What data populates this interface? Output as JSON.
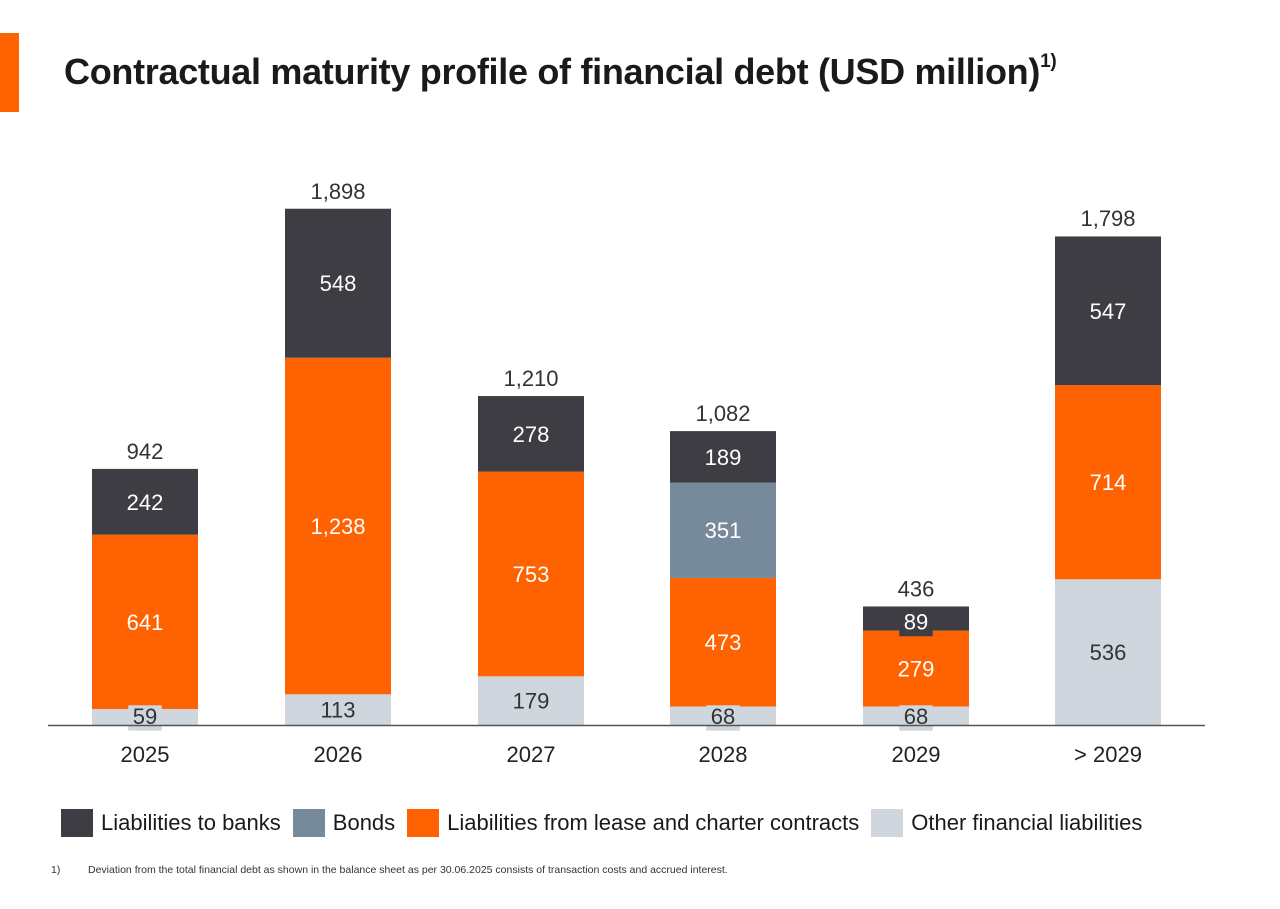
{
  "title": "Contractual maturity profile of financial debt (USD million)",
  "title_footnote_mark": "1)",
  "footnote": {
    "mark": "1)",
    "text": "Deviation from the total financial debt as shown in the balance sheet as per 30.06.2025 consists of transaction costs and accrued interest."
  },
  "colors": {
    "accent": "#ff6200",
    "banks": "#3f3d44",
    "bonds": "#768a9b",
    "lease": "#ff6200",
    "other": "#cfd6de"
  },
  "chart_data": {
    "type": "bar",
    "stacked": true,
    "categories": [
      "2025",
      "2026",
      "2027",
      "2028",
      "2029",
      "> 2029"
    ],
    "series": [
      {
        "name": "Other financial liabilities",
        "key": "other",
        "values": [
          59,
          113,
          179,
          68,
          68,
          536
        ]
      },
      {
        "name": "Liabilities from lease and charter contracts",
        "key": "lease",
        "values": [
          641,
          1238,
          753,
          473,
          279,
          714
        ]
      },
      {
        "name": "Bonds",
        "key": "bonds",
        "values": [
          0,
          0,
          0,
          351,
          0,
          0
        ]
      },
      {
        "name": "Liabilities to banks",
        "key": "banks",
        "values": [
          242,
          548,
          278,
          189,
          89,
          547
        ]
      }
    ],
    "segment_labels": [
      [
        "59",
        "641",
        "",
        "242"
      ],
      [
        "113",
        "1,238",
        "",
        "548"
      ],
      [
        "179",
        "753",
        "",
        "278"
      ],
      [
        "68",
        "473",
        "351",
        "189"
      ],
      [
        "68",
        "279",
        "",
        "89"
      ],
      [
        "536",
        "714",
        "",
        "547"
      ]
    ],
    "totals": [
      "942",
      "1,898",
      "1,210",
      "1,082",
      "436",
      "1,798"
    ],
    "total_values": [
      942,
      1898,
      1210,
      1082,
      436,
      1798
    ],
    "legend": [
      {
        "name": "Liabilities to banks",
        "key": "banks"
      },
      {
        "name": "Bonds",
        "key": "bonds"
      },
      {
        "name": "Liabilities from lease and charter contracts",
        "key": "lease"
      },
      {
        "name": "Other financial liabilities",
        "key": "other"
      }
    ],
    "legend_position": "bottom",
    "ylim": [
      0,
      1898
    ],
    "grid": false
  }
}
